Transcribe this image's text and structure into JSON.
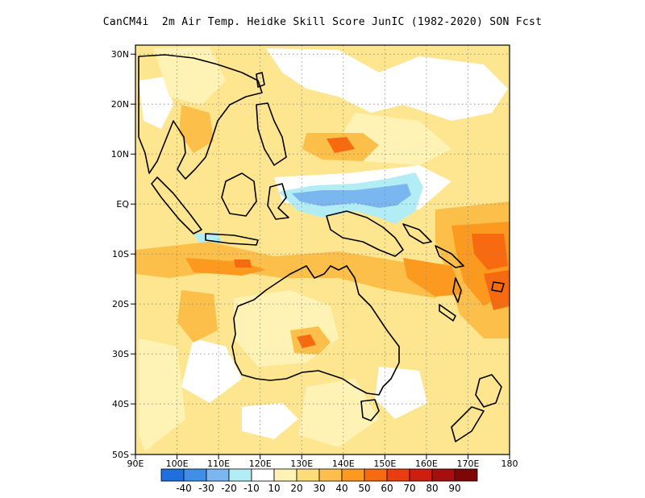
{
  "title": "CanCM4i  2m Air Temp. Heidke Skill Score JunIC (1982-2020) SON Fcst",
  "lat_labels": [
    "30N",
    "20N",
    "10N",
    "EQ",
    "10S",
    "20S",
    "30S",
    "40S",
    "50S"
  ],
  "lon_labels": [
    "90E",
    "100E",
    "110E",
    "120E",
    "130E",
    "140E",
    "150E",
    "160E",
    "170E",
    "180"
  ],
  "colorbar": {
    "labels": [
      "-40",
      "-30",
      "-20",
      "-10",
      "10",
      "20",
      "30",
      "40",
      "50",
      "60",
      "70",
      "80",
      "90"
    ],
    "colors": [
      "#1f6fe0",
      "#3f8ee8",
      "#7ab6f0",
      "#b2ecf4",
      "#ffffff",
      "#fef3b4",
      "#fddd7a",
      "#fcbf4a",
      "#fb9a1e",
      "#f76a10",
      "#eb3c10",
      "#cf1d10",
      "#a90e0e",
      "#7e0606"
    ]
  },
  "map": {
    "projection": "lat-lon",
    "lon_range": [
      90,
      180
    ],
    "lat_range": [
      -50,
      32
    ],
    "grid": "dotted",
    "background_color": "#fde68f"
  }
}
